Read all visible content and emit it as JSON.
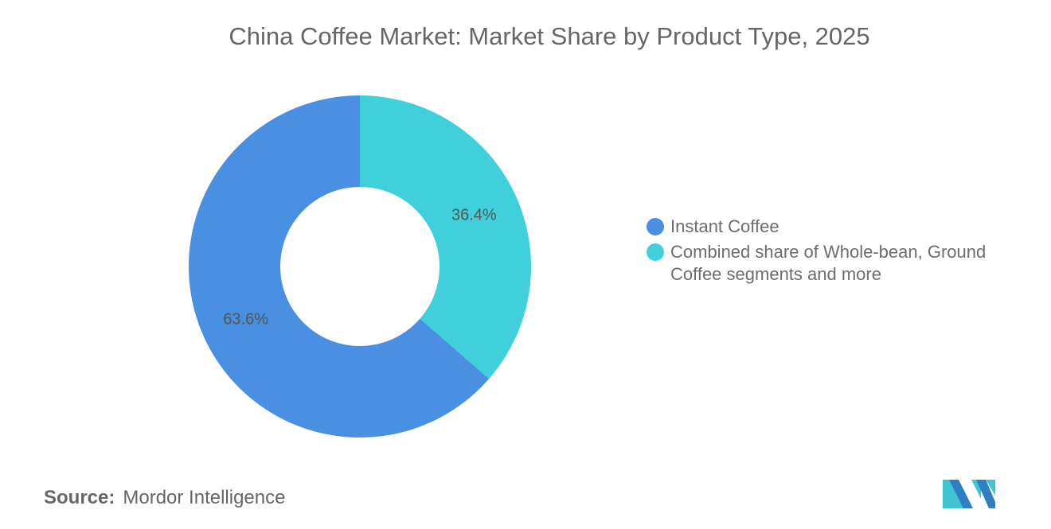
{
  "chart_data": {
    "type": "pie",
    "variant": "donut",
    "title": "China Coffee Market: Market Share by Product Type, 2025",
    "categories": [
      "Instant Coffee",
      "Combined share of Whole-bean, Ground Coffee segments and more"
    ],
    "values": [
      63.6,
      36.4
    ],
    "unit": "%",
    "data_labels": [
      "63.6%",
      "36.4%"
    ],
    "colors": [
      "#4a90e2",
      "#40d0db"
    ],
    "legend_placement": "right"
  },
  "source": {
    "label": "Source:",
    "value": "Mordor Intelligence"
  },
  "logo": {
    "name": "Mordor Intelligence logo",
    "colors": [
      "#2e7fc1",
      "#40c4cf"
    ]
  }
}
